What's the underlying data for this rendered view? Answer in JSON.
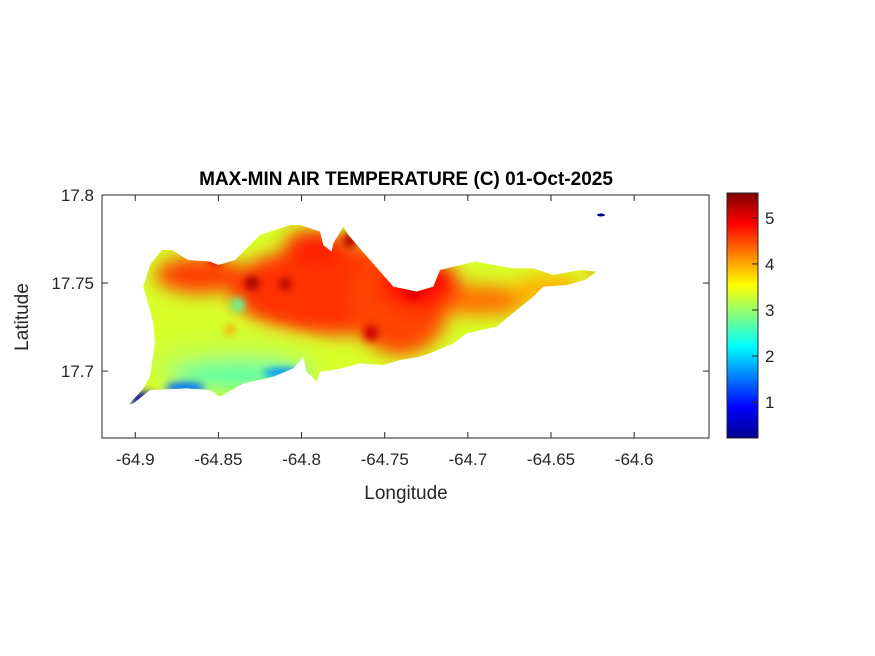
{
  "chart_data": {
    "type": "heatmap",
    "title": "MAX-MIN AIR TEMPERATURE (C) 01-Oct-2025",
    "xlabel": "Longitude",
    "ylabel": "Latitude",
    "xlim": [
      -64.92,
      -64.555
    ],
    "ylim": [
      17.662,
      17.8
    ],
    "xticks": [
      -64.9,
      -64.85,
      -64.8,
      -64.75,
      -64.7,
      -64.65,
      -64.6
    ],
    "xtick_labels": [
      "-64.9",
      "-64.85",
      "-64.8",
      "-64.75",
      "-64.7",
      "-64.65",
      "-64.6"
    ],
    "yticks": [
      17.8,
      17.75,
      17.7
    ],
    "ytick_labels": [
      "17.8",
      "17.75",
      "17.7"
    ],
    "colormap": "jet",
    "colorbar": {
      "range": [
        0.22,
        5.54
      ],
      "ticks": [
        1,
        2,
        3,
        4,
        5
      ],
      "tick_labels": [
        "1",
        "2",
        "3",
        "4",
        "5"
      ],
      "placement": "right"
    },
    "grid": false
  }
}
